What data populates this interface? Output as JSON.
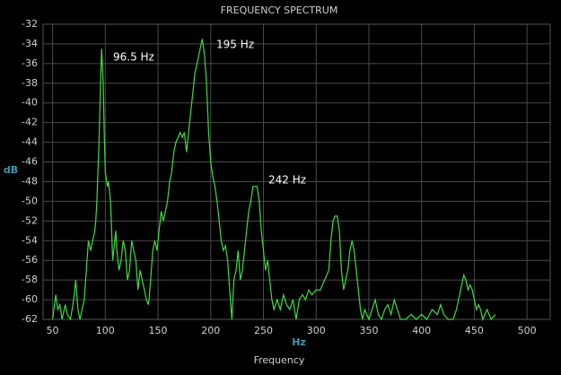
{
  "chart_data": {
    "type": "line",
    "title": "FREQUENCY SPECTRUM",
    "y_label": "dB",
    "x_unit": "Hz",
    "x_label": "Frequency",
    "annotations": [
      "96.5 Hz",
      "195 Hz",
      "242 Hz"
    ],
    "xlim": [
      41,
      522
    ],
    "xticks": [
      50,
      100,
      150,
      200,
      250,
      300,
      350,
      400,
      450,
      500
    ],
    "ylim": [
      -62,
      -32
    ],
    "yticks": [
      -32,
      -34,
      -36,
      -38,
      -40,
      -42,
      -44,
      -46,
      -48,
      -50,
      -52,
      -54,
      -56,
      -58,
      -60,
      -62
    ],
    "grid": true,
    "x": [
      50,
      53,
      55,
      57,
      59,
      62,
      64,
      67,
      70,
      72,
      74,
      76,
      80,
      82,
      84,
      86,
      88,
      90,
      91,
      92,
      93,
      94,
      95,
      96.5,
      98,
      99,
      100,
      102,
      103,
      105,
      106,
      107,
      108,
      110,
      111,
      113,
      115,
      117,
      119,
      121,
      123,
      125,
      127,
      129,
      131,
      133,
      135,
      137,
      139,
      141,
      143,
      145,
      147,
      149,
      151,
      153,
      155,
      157,
      159,
      161,
      163,
      165,
      167,
      169,
      171,
      173,
      175,
      177,
      179,
      181,
      183,
      185,
      187,
      189,
      191,
      192,
      194,
      196,
      198,
      200,
      202,
      204,
      206,
      208,
      210,
      212,
      214,
      216,
      218,
      220,
      222,
      224,
      226,
      228,
      230,
      232,
      234,
      236,
      238,
      240,
      244,
      246,
      248,
      250,
      252,
      254,
      256,
      258,
      260,
      263,
      266,
      269,
      272,
      275,
      278,
      281,
      284,
      287,
      290,
      293,
      296,
      300,
      304,
      308,
      312,
      314,
      316,
      318,
      320,
      322,
      324,
      326,
      328,
      330,
      332,
      334,
      336,
      338,
      340,
      342,
      344,
      346,
      348,
      350,
      353,
      356,
      359,
      362,
      365,
      368,
      371,
      374,
      377,
      380,
      385,
      390,
      395,
      400,
      405,
      410,
      415,
      418,
      421,
      425,
      430,
      433,
      435,
      437,
      439,
      440,
      442,
      444,
      446,
      448,
      450,
      452,
      454,
      456,
      458,
      462,
      466,
      470
    ],
    "series": [
      {
        "color": "#3fdc3f",
        "values": [
          -62,
          -59.5,
          -61,
          -60.5,
          -62,
          -60.5,
          -61.5,
          -62,
          -60,
          -58,
          -61,
          -62,
          -60,
          -57,
          -54,
          -55,
          -54,
          -53,
          -52,
          -50,
          -47,
          -44,
          -40,
          -34.5,
          -38,
          -43,
          -47,
          -48.5,
          -48,
          -50,
          -53,
          -56,
          -55,
          -53,
          -55,
          -57,
          -56,
          -54,
          -55,
          -58,
          -57,
          -54,
          -55,
          -56,
          -59,
          -57,
          -58,
          -59,
          -60,
          -60.5,
          -58,
          -55,
          -54,
          -55,
          -53,
          -51,
          -52,
          -51,
          -50,
          -48,
          -47,
          -45,
          -44,
          -43.5,
          -43,
          -43.5,
          -43,
          -45,
          -43,
          -41,
          -39,
          -37,
          -36,
          -35,
          -34,
          -33.5,
          -35,
          -38,
          -43,
          -46,
          -47.5,
          -48.5,
          -50,
          -52,
          -54,
          -55,
          -54.5,
          -56,
          -59,
          -62,
          -58,
          -57,
          -55,
          -58,
          -57,
          -55,
          -53,
          -51,
          -50,
          -48.5,
          -48.5,
          -50,
          -53,
          -55,
          -57,
          -56,
          -58,
          -60,
          -61,
          -60,
          -61,
          -59.5,
          -60.5,
          -61,
          -60,
          -62,
          -60,
          -59.5,
          -60,
          -59,
          -59.5,
          -59,
          -59,
          -58,
          -57,
          -54,
          -52,
          -51.5,
          -51.5,
          -53,
          -57,
          -59,
          -58,
          -57,
          -55,
          -54,
          -55,
          -57,
          -59,
          -61,
          -62,
          -61,
          -61.5,
          -62,
          -61,
          -60,
          -61.5,
          -62,
          -61,
          -60.5,
          -61.5,
          -60,
          -61,
          -62,
          -62,
          -61.5,
          -62,
          -61.5,
          -62,
          -61,
          -61.5,
          -60.5,
          -61.5,
          -62,
          -62,
          -61,
          -60,
          -59,
          -58,
          -57.5,
          -58,
          -59,
          -58.5,
          -59,
          -60,
          -61,
          -60.5,
          -61,
          -62,
          -61,
          -62,
          -61.5
        ]
      }
    ]
  }
}
